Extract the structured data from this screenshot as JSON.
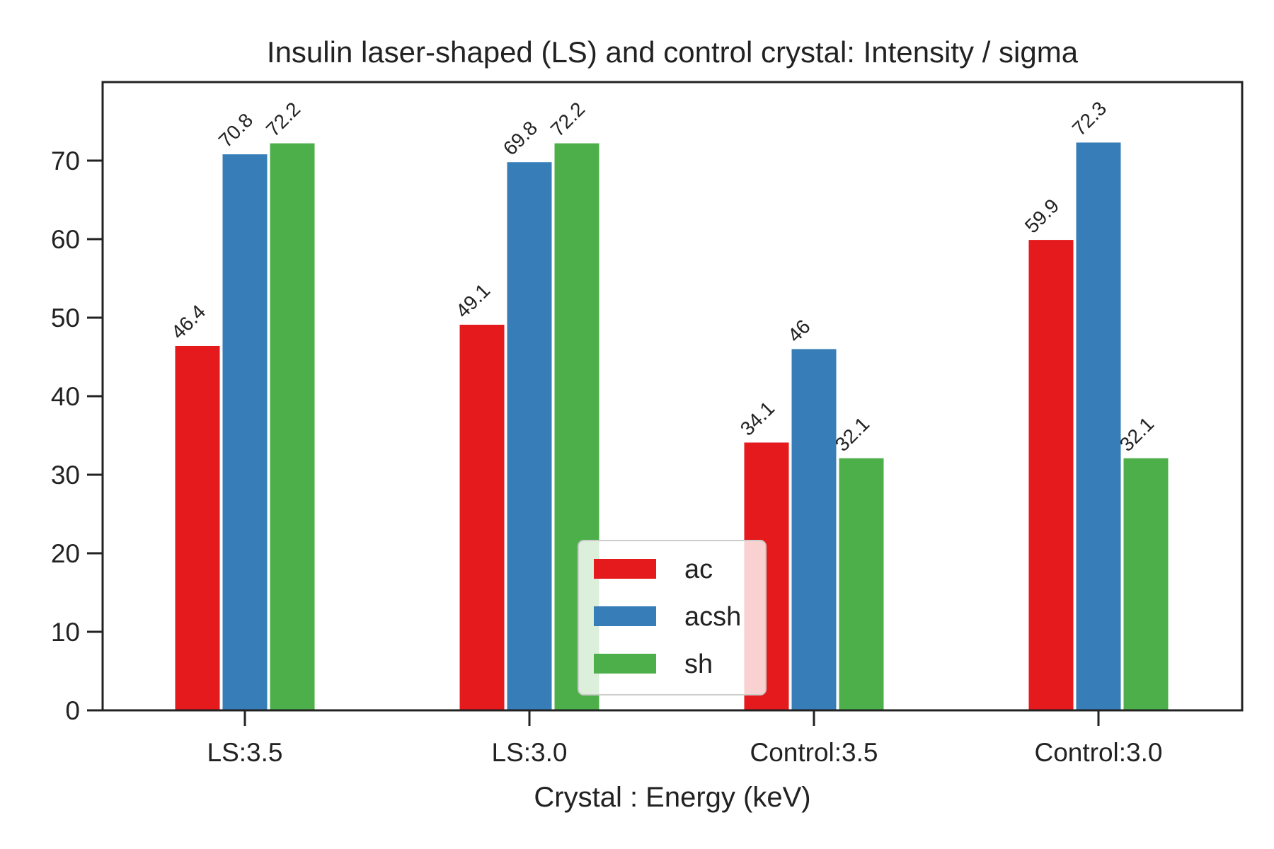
{
  "chart_data": {
    "type": "bar",
    "title": "Insulin laser-shaped (LS) and control crystal: Intensity / sigma",
    "xlabel": "Crystal : Energy (keV)",
    "ylabel": "",
    "categories": [
      "LS:3.5",
      "LS:3.0",
      "Control:3.5",
      "Control:3.0"
    ],
    "series": [
      {
        "name": "ac",
        "values": [
          46.4,
          49.1,
          34.1,
          59.9
        ],
        "labels": [
          "46.4",
          "49.1",
          "34.1",
          "59.9"
        ],
        "color": "#e41a1c"
      },
      {
        "name": "acsh",
        "values": [
          70.8,
          69.8,
          46.0,
          72.3
        ],
        "labels": [
          "70.8",
          "69.8",
          "46",
          "72.3"
        ],
        "color": "#377eb8"
      },
      {
        "name": "sh",
        "values": [
          72.2,
          72.2,
          32.1,
          32.1
        ],
        "labels": [
          "72.2",
          "72.2",
          "32.1",
          "32.1"
        ],
        "color": "#4daf4a"
      }
    ],
    "ylim": [
      0,
      80
    ],
    "yticks": [
      0,
      10,
      20,
      30,
      40,
      50,
      60,
      70
    ],
    "grid": false,
    "legend_placement": "lower-center"
  }
}
